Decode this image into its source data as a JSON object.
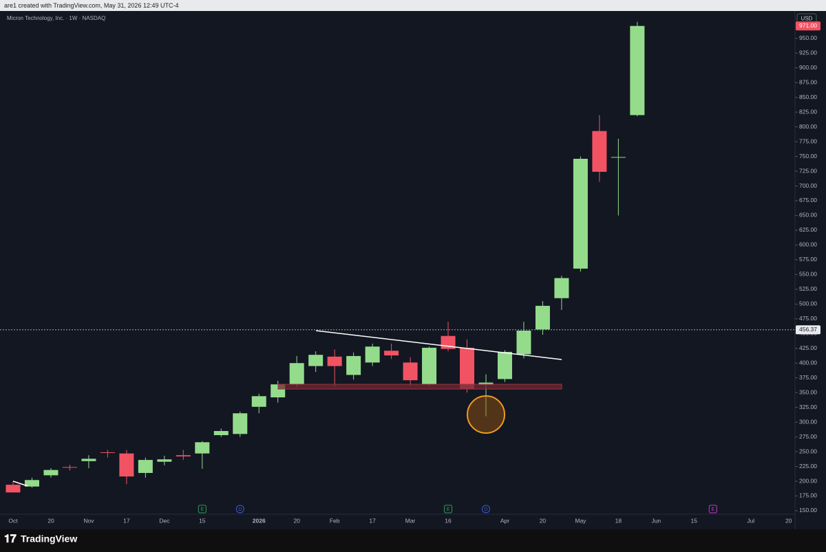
{
  "header": {
    "caption": "are1 created with TradingView.com, May 31, 2026 12:49 UTC-4",
    "symbol": "Micron Technology, Inc. · 1W · NASDAQ",
    "currency": "USD",
    "brand": "TradingView"
  },
  "chart_data": {
    "type": "candlestick",
    "up_color": "#94dc8c",
    "down_color": "#f25363",
    "categories": [
      "Oct",
      null,
      "20",
      null,
      "Nov",
      null,
      "17",
      null,
      "Dec",
      null,
      "15",
      null,
      null,
      "2026",
      null,
      "20",
      null,
      "Feb",
      null,
      "17",
      null,
      "Mar",
      null,
      "16",
      null,
      null,
      "Apr",
      null,
      "20",
      null,
      "May",
      null,
      "18",
      null,
      "Jun",
      null,
      "15",
      null,
      null,
      "Jul",
      null,
      "20"
    ],
    "open": [
      194,
      191,
      210,
      224,
      234,
      249,
      247,
      214,
      233,
      244,
      247,
      278,
      280,
      326,
      342,
      364,
      395,
      411,
      380,
      401,
      421,
      401,
      364,
      446,
      426,
      363,
      373,
      415,
      457,
      510,
      560,
      793,
      748,
      820,
      null,
      null,
      null,
      null,
      null,
      null,
      null,
      null
    ],
    "high": [
      200,
      206,
      222,
      228,
      244,
      253,
      253,
      240,
      243,
      253,
      268,
      289,
      318,
      348,
      370,
      412,
      420,
      423,
      418,
      433,
      433,
      410,
      428,
      470,
      440,
      381,
      422,
      470,
      505,
      548,
      750,
      820,
      780,
      978,
      null,
      null,
      null,
      null,
      null,
      null,
      null,
      null
    ],
    "low": [
      181,
      189,
      206,
      218,
      222,
      240,
      195,
      206,
      227,
      236,
      221,
      275,
      275,
      315,
      333,
      360,
      385,
      360,
      372,
      395,
      407,
      361,
      361,
      420,
      350,
      310,
      368,
      408,
      448,
      490,
      555,
      707,
      650,
      818,
      null,
      null,
      null,
      null,
      null,
      null,
      null,
      null
    ],
    "close": [
      181,
      202,
      219,
      223,
      238,
      248,
      208,
      236,
      237,
      242,
      266,
      285,
      315,
      344,
      364,
      400,
      414,
      395,
      412,
      428,
      413,
      371,
      426,
      424,
      356,
      367,
      419,
      455,
      497,
      544,
      746,
      724,
      749,
      971,
      null,
      null,
      null,
      null,
      null,
      null,
      null,
      null
    ],
    "events": [
      null,
      null,
      null,
      null,
      null,
      null,
      null,
      null,
      null,
      null,
      "E",
      null,
      "D",
      null,
      null,
      null,
      null,
      null,
      null,
      null,
      null,
      null,
      null,
      "E",
      null,
      "D",
      null,
      null,
      null,
      null,
      null,
      null,
      null,
      null,
      null,
      null,
      null,
      "E",
      null,
      null,
      null,
      null
    ],
    "last_price": {
      "value": 971,
      "label": "971.00"
    },
    "reference_line": {
      "value": 456.37,
      "label": "456.37"
    },
    "ylim": [
      132.5,
      980
    ],
    "yticks": [
      {
        "value": 150,
        "label": "150.00"
      },
      {
        "value": 175,
        "label": "175.00"
      },
      {
        "value": 200,
        "label": "200.00"
      },
      {
        "value": 225,
        "label": "225.00"
      },
      {
        "value": 250,
        "label": "250.00"
      },
      {
        "value": 275,
        "label": "275.00"
      },
      {
        "value": 300,
        "label": "300.00"
      },
      {
        "value": 325,
        "label": "325.00"
      },
      {
        "value": 350,
        "label": "350.00"
      },
      {
        "value": 375,
        "label": "375.00"
      },
      {
        "value": 400,
        "label": "400.00"
      },
      {
        "value": 425,
        "label": "425.00"
      },
      {
        "value": 450,
        "label": "450.00"
      },
      {
        "value": 475,
        "label": "475.00"
      },
      {
        "value": 500,
        "label": "500.00"
      },
      {
        "value": 525,
        "label": "525.00"
      },
      {
        "value": 550,
        "label": "550.00"
      },
      {
        "value": 575,
        "label": "575.00"
      },
      {
        "value": 600,
        "label": "600.00"
      },
      {
        "value": 625,
        "label": "625.00"
      },
      {
        "value": 650,
        "label": "650.00"
      },
      {
        "value": 675,
        "label": "675.00"
      },
      {
        "value": 700,
        "label": "700.00"
      },
      {
        "value": 725,
        "label": "725.00"
      },
      {
        "value": 750,
        "label": "750.00"
      },
      {
        "value": 775,
        "label": "775.00"
      },
      {
        "value": 800,
        "label": "800.00"
      },
      {
        "value": 825,
        "label": "825.00"
      },
      {
        "value": 850,
        "label": "850.00"
      },
      {
        "value": 875,
        "label": "875.00"
      },
      {
        "value": 900,
        "label": "900.00"
      },
      {
        "value": 925,
        "label": "925.00"
      },
      {
        "value": 950,
        "label": "950.00"
      }
    ]
  }
}
